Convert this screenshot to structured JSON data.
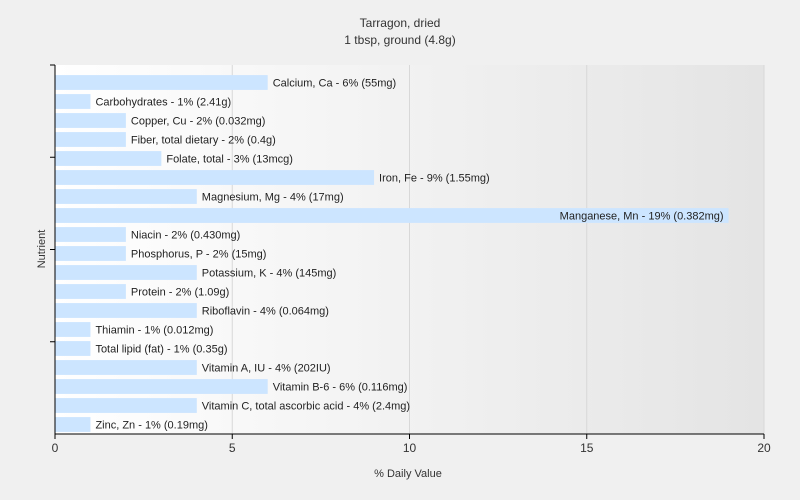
{
  "chart_data": {
    "type": "bar",
    "orientation": "horizontal",
    "title": "Tarragon, dried",
    "subtitle": "1 tbsp, ground (4.8g)",
    "xlabel": "% Daily Value",
    "ylabel": "Nutrient",
    "xlim": [
      0,
      20
    ],
    "xticks": [
      0,
      5,
      10,
      15,
      20
    ],
    "grid": true,
    "bar_color": "#cce5ff",
    "categories": [
      "Calcium, Ca",
      "Carbohydrates",
      "Copper, Cu",
      "Fiber, total dietary",
      "Folate, total",
      "Iron, Fe",
      "Magnesium, Mg",
      "Manganese, Mn",
      "Niacin",
      "Phosphorus, P",
      "Potassium, K",
      "Protein",
      "Riboflavin",
      "Thiamin",
      "Total lipid (fat)",
      "Vitamin A, IU",
      "Vitamin B-6",
      "Vitamin C, total ascorbic acid",
      "Zinc, Zn"
    ],
    "values": [
      6,
      1,
      2,
      2,
      3,
      9,
      4,
      19,
      2,
      2,
      4,
      2,
      4,
      1,
      1,
      4,
      6,
      4,
      1
    ],
    "labels": [
      "Calcium, Ca - 6% (55mg)",
      "Carbohydrates - 1% (2.41g)",
      "Copper, Cu - 2% (0.032mg)",
      "Fiber, total dietary - 2% (0.4g)",
      "Folate, total - 3% (13mcg)",
      "Iron, Fe - 9% (1.55mg)",
      "Magnesium, Mg - 4% (17mg)",
      "Manganese, Mn - 19% (0.382mg)",
      "Niacin - 2% (0.430mg)",
      "Phosphorus, P - 2% (15mg)",
      "Potassium, K - 4% (145mg)",
      "Protein - 2% (1.09g)",
      "Riboflavin - 4% (0.064mg)",
      "Thiamin - 1% (0.012mg)",
      "Total lipid (fat) - 1% (0.35g)",
      "Vitamin A, IU - 4% (202IU)",
      "Vitamin B-6 - 6% (0.116mg)",
      "Vitamin C, total ascorbic acid - 4% (2.4mg)",
      "Zinc, Zn - 1% (0.19mg)"
    ]
  }
}
